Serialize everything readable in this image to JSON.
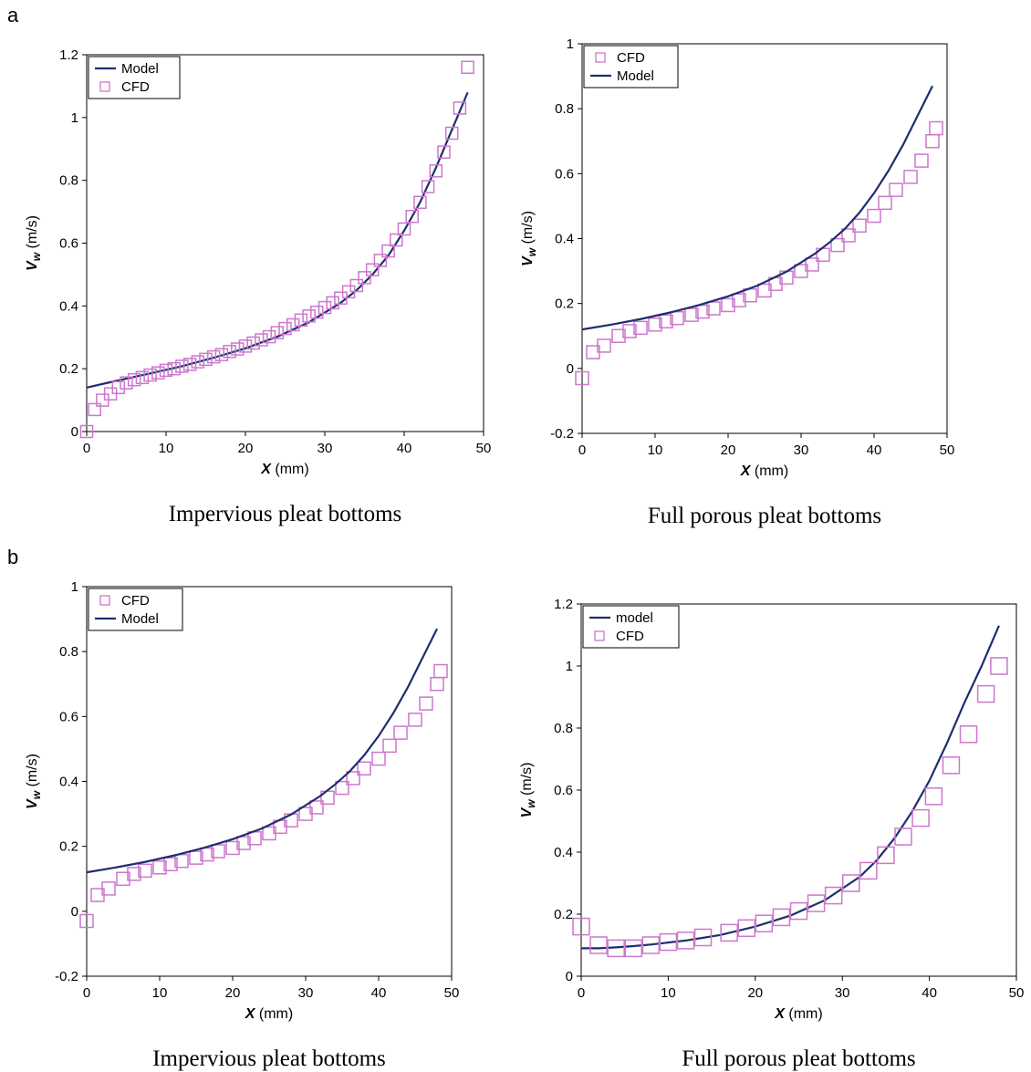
{
  "panel_letters": [
    "a",
    "b"
  ],
  "chart_data": [
    {
      "type": "scatter",
      "panel": "a",
      "caption": "Impervious pleat bottoms",
      "xlabel": "X (mm)",
      "ylabel": "Vw (m/s)",
      "xlim": [
        0,
        50
      ],
      "ylim": [
        0,
        1.2
      ],
      "xticks": [
        "0",
        "10",
        "20",
        "30",
        "40",
        "50"
      ],
      "yticks": [
        "0",
        "0.2",
        "0.4",
        "0.6",
        "0.8",
        "1",
        "1.2"
      ],
      "grid": false,
      "legend_position": "top-left",
      "legend": [
        "Model",
        "CFD"
      ],
      "series": [
        {
          "name": "Model",
          "style": "line",
          "color": "#1f2d6e",
          "x": [
            0,
            4,
            8,
            12,
            16,
            20,
            24,
            28,
            32,
            34,
            36,
            38,
            40,
            42,
            44,
            46,
            48
          ],
          "y": [
            0.14,
            0.163,
            0.185,
            0.208,
            0.235,
            0.265,
            0.302,
            0.348,
            0.41,
            0.45,
            0.5,
            0.56,
            0.64,
            0.73,
            0.84,
            0.96,
            1.08
          ]
        },
        {
          "name": "CFD",
          "style": "square",
          "color": "#cc77cc",
          "x": [
            0,
            1,
            2,
            3,
            4,
            5,
            6,
            7,
            8,
            9,
            10,
            11,
            12,
            13,
            14,
            15,
            16,
            17,
            18,
            19,
            20,
            21,
            22,
            23,
            24,
            25,
            26,
            27,
            28,
            29,
            30,
            31,
            32,
            33,
            34,
            35,
            36,
            37,
            38,
            39,
            40,
            41,
            42,
            43,
            44,
            45,
            46,
            47,
            48
          ],
          "y": [
            0.0,
            0.07,
            0.1,
            0.12,
            0.14,
            0.155,
            0.165,
            0.172,
            0.18,
            0.187,
            0.195,
            0.2,
            0.208,
            0.214,
            0.222,
            0.23,
            0.238,
            0.245,
            0.255,
            0.263,
            0.272,
            0.282,
            0.292,
            0.302,
            0.315,
            0.328,
            0.34,
            0.355,
            0.368,
            0.38,
            0.395,
            0.41,
            0.425,
            0.445,
            0.465,
            0.49,
            0.515,
            0.545,
            0.575,
            0.61,
            0.645,
            0.685,
            0.73,
            0.78,
            0.83,
            0.89,
            0.95,
            1.03,
            1.16
          ]
        }
      ]
    },
    {
      "type": "scatter",
      "panel": "a",
      "caption": "Full porous pleat bottoms",
      "xlabel": "X (mm)",
      "ylabel": "Vw (m/s)",
      "xlim": [
        0,
        50
      ],
      "ylim": [
        -0.2,
        1
      ],
      "xticks": [
        "0",
        "10",
        "20",
        "30",
        "40",
        "50"
      ],
      "yticks": [
        "-0.2",
        "0",
        "0.2",
        "0.4",
        "0.6",
        "0.8",
        "1"
      ],
      "grid": false,
      "legend_position": "top-left",
      "legend": [
        "CFD",
        "Model"
      ],
      "series": [
        {
          "name": "CFD",
          "style": "square",
          "color": "#cc77cc",
          "x": [
            0,
            1.5,
            3,
            5,
            6.5,
            8,
            10,
            11.5,
            13,
            15,
            16.5,
            18,
            20,
            21.5,
            23,
            25,
            26.5,
            28,
            30,
            31.5,
            33,
            35,
            36.5,
            38,
            40,
            41.5,
            43,
            45,
            46.5,
            48,
            48.5
          ],
          "y": [
            -0.03,
            0.05,
            0.07,
            0.1,
            0.115,
            0.125,
            0.135,
            0.145,
            0.155,
            0.165,
            0.175,
            0.185,
            0.195,
            0.21,
            0.225,
            0.24,
            0.26,
            0.28,
            0.3,
            0.32,
            0.35,
            0.38,
            0.41,
            0.44,
            0.47,
            0.51,
            0.55,
            0.59,
            0.64,
            0.7,
            0.74
          ]
        },
        {
          "name": "Model",
          "style": "line",
          "color": "#1f2d6e",
          "x": [
            0,
            4,
            8,
            12,
            16,
            20,
            24,
            28,
            32,
            34,
            36,
            38,
            40,
            42,
            44,
            46,
            48
          ],
          "y": [
            0.12,
            0.135,
            0.152,
            0.172,
            0.195,
            0.222,
            0.255,
            0.298,
            0.355,
            0.39,
            0.43,
            0.48,
            0.54,
            0.61,
            0.69,
            0.78,
            0.87
          ]
        }
      ]
    },
    {
      "type": "scatter",
      "panel": "b",
      "caption": "Impervious pleat bottoms",
      "xlabel": "X (mm)",
      "ylabel": "Vw (m/s)",
      "xlim": [
        0,
        50
      ],
      "ylim": [
        -0.2,
        1
      ],
      "xticks": [
        "0",
        "10",
        "20",
        "30",
        "40",
        "50"
      ],
      "yticks": [
        "-0.2",
        "0",
        "0.2",
        "0.4",
        "0.6",
        "0.8",
        "1"
      ],
      "grid": false,
      "legend_position": "top-left",
      "legend": [
        "CFD",
        "Model"
      ],
      "series": [
        {
          "name": "CFD",
          "style": "square",
          "color": "#cc77cc",
          "x": [
            0,
            1.5,
            3,
            5,
            6.5,
            8,
            10,
            11.5,
            13,
            15,
            16.5,
            18,
            20,
            21.5,
            23,
            25,
            26.5,
            28,
            30,
            31.5,
            33,
            35,
            36.5,
            38,
            40,
            41.5,
            43,
            45,
            46.5,
            48,
            48.5
          ],
          "y": [
            -0.03,
            0.05,
            0.07,
            0.1,
            0.115,
            0.125,
            0.135,
            0.145,
            0.155,
            0.165,
            0.175,
            0.185,
            0.195,
            0.21,
            0.225,
            0.24,
            0.26,
            0.28,
            0.3,
            0.32,
            0.35,
            0.38,
            0.41,
            0.44,
            0.47,
            0.51,
            0.55,
            0.59,
            0.64,
            0.7,
            0.74
          ]
        },
        {
          "name": "Model",
          "style": "line",
          "color": "#1f2d6e",
          "x": [
            0,
            4,
            8,
            12,
            16,
            20,
            24,
            28,
            32,
            34,
            36,
            38,
            40,
            42,
            44,
            46,
            48
          ],
          "y": [
            0.12,
            0.135,
            0.152,
            0.172,
            0.195,
            0.222,
            0.255,
            0.298,
            0.355,
            0.39,
            0.43,
            0.48,
            0.54,
            0.61,
            0.69,
            0.78,
            0.87
          ]
        }
      ]
    },
    {
      "type": "scatter",
      "panel": "b",
      "caption": "Full porous pleat bottoms",
      "xlabel": "X (mm)",
      "ylabel": "Vw (m/s)",
      "xlim": [
        0,
        50
      ],
      "ylim": [
        0,
        1.2
      ],
      "xticks": [
        "0",
        "10",
        "20",
        "30",
        "40",
        "50"
      ],
      "yticks": [
        "0",
        "0.2",
        "0.4",
        "0.6",
        "0.8",
        "1",
        "1.2"
      ],
      "grid": false,
      "legend_position": "top-left",
      "legend": [
        "model",
        "CFD"
      ],
      "series": [
        {
          "name": "model",
          "style": "line",
          "color": "#1f2d6e",
          "x": [
            0,
            2,
            4,
            6,
            8,
            12,
            16,
            20,
            24,
            28,
            32,
            34,
            36,
            38,
            40,
            42,
            44,
            46,
            48
          ],
          "y": [
            0.09,
            0.09,
            0.093,
            0.097,
            0.102,
            0.115,
            0.133,
            0.16,
            0.195,
            0.245,
            0.32,
            0.375,
            0.445,
            0.53,
            0.63,
            0.75,
            0.88,
            1.0,
            1.13
          ]
        },
        {
          "name": "CFD",
          "style": "square",
          "color": "#cc77cc",
          "x": [
            0,
            2,
            4,
            6,
            8,
            10,
            12,
            14,
            17,
            19,
            21,
            23,
            25,
            27,
            29,
            31,
            33,
            35,
            37,
            39,
            40.5,
            42.5,
            44.5,
            46.5,
            48
          ],
          "y": [
            0.16,
            0.1,
            0.09,
            0.09,
            0.1,
            0.11,
            0.115,
            0.125,
            0.14,
            0.155,
            0.17,
            0.19,
            0.21,
            0.235,
            0.26,
            0.3,
            0.34,
            0.39,
            0.45,
            0.51,
            0.58,
            0.68,
            0.78,
            0.91,
            1.0
          ]
        }
      ]
    }
  ]
}
